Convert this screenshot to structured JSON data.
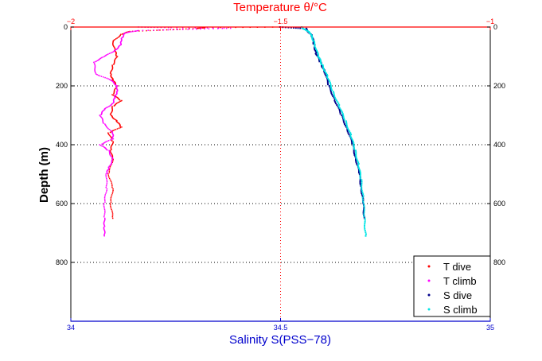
{
  "chart_data": {
    "type": "scatter",
    "top_axis": {
      "label": "Temperature θ/°C",
      "range": [
        -2,
        -1
      ],
      "ticks": [
        -2,
        -1.5,
        -1
      ],
      "tick_labels": [
        "−2",
        "−1.5",
        "−1"
      ],
      "color": "#ff0000"
    },
    "bottom_axis": {
      "label": "Salinity S(PSS−78)",
      "range": [
        34,
        35
      ],
      "ticks": [
        34,
        34.5,
        35
      ],
      "tick_labels": [
        "34",
        "34.5",
        "35"
      ],
      "color": "#0000cc"
    },
    "y_axis": {
      "label": "Depth (m)",
      "range": [
        0,
        1000
      ],
      "reversed": true,
      "ticks": [
        0,
        200,
        400,
        600,
        800
      ],
      "tick_labels": [
        "0",
        "200",
        "400",
        "600",
        "800"
      ]
    },
    "grid": "dotted",
    "legend": {
      "position": "bottom-right",
      "entries": [
        {
          "label": "T dive",
          "color": "#ff0000"
        },
        {
          "label": "T climb",
          "color": "#ff00ff"
        },
        {
          "label": "S dive",
          "color": "#00008b"
        },
        {
          "label": "S climb",
          "color": "#00e5e5"
        }
      ]
    },
    "series": [
      {
        "name": "T dive",
        "axis": "temperature",
        "color": "#ff0000",
        "x": [
          -1.5,
          -1.68,
          -1.7,
          -1.78,
          -1.86,
          -1.88,
          -1.9,
          -1.895,
          -1.89,
          -1.9,
          -1.905,
          -1.9,
          -1.89,
          -1.9,
          -1.88,
          -1.9,
          -1.905,
          -1.89,
          -1.88,
          -1.91,
          -1.9,
          -1.905,
          -1.9,
          -1.91,
          -1.9,
          -1.905,
          -1.9
        ],
        "y": [
          0,
          2,
          5,
          10,
          15,
          25,
          50,
          80,
          100,
          130,
          160,
          180,
          200,
          230,
          250,
          270,
          300,
          320,
          340,
          360,
          390,
          420,
          450,
          500,
          550,
          600,
          650
        ]
      },
      {
        "name": "T climb",
        "axis": "temperature",
        "color": "#ff00ff",
        "x": [
          -1.84,
          -1.76,
          -1.62,
          -1.72,
          -1.84,
          -1.87,
          -1.88,
          -1.88,
          -1.895,
          -1.92,
          -1.945,
          -1.94,
          -1.905,
          -1.89,
          -1.89,
          -1.895,
          -1.9,
          -1.92,
          -1.93,
          -1.92,
          -1.9,
          -1.9,
          -1.93,
          -1.91,
          -1.9,
          -1.91,
          -1.915,
          -1.915,
          -1.92,
          -1.92,
          -1.92,
          -1.92
        ],
        "y": [
          0,
          2,
          4,
          8,
          12,
          20,
          40,
          60,
          80,
          100,
          120,
          160,
          180,
          200,
          220,
          240,
          260,
          280,
          300,
          330,
          360,
          380,
          400,
          420,
          450,
          480,
          500,
          550,
          600,
          650,
          680,
          710
        ]
      },
      {
        "name": "S dive",
        "axis": "salinity",
        "color": "#00008b",
        "x": [
          34.5,
          34.56,
          34.575,
          34.58,
          34.585,
          34.595,
          34.605,
          34.615,
          34.63,
          34.645,
          34.66,
          34.672,
          34.68,
          34.688,
          34.693,
          34.697,
          34.7
        ],
        "y": [
          0,
          5,
          30,
          60,
          90,
          120,
          150,
          200,
          250,
          300,
          350,
          400,
          450,
          500,
          550,
          600,
          650
        ]
      },
      {
        "name": "S climb",
        "axis": "salinity",
        "color": "#00e5e5",
        "x": [
          34.55,
          34.57,
          34.58,
          34.59,
          34.6,
          34.612,
          34.625,
          34.64,
          34.655,
          34.668,
          34.678,
          34.686,
          34.692,
          34.697,
          34.7,
          34.703
        ],
        "y": [
          0,
          20,
          50,
          100,
          130,
          170,
          220,
          270,
          320,
          370,
          420,
          470,
          520,
          580,
          650,
          710
        ]
      }
    ]
  }
}
